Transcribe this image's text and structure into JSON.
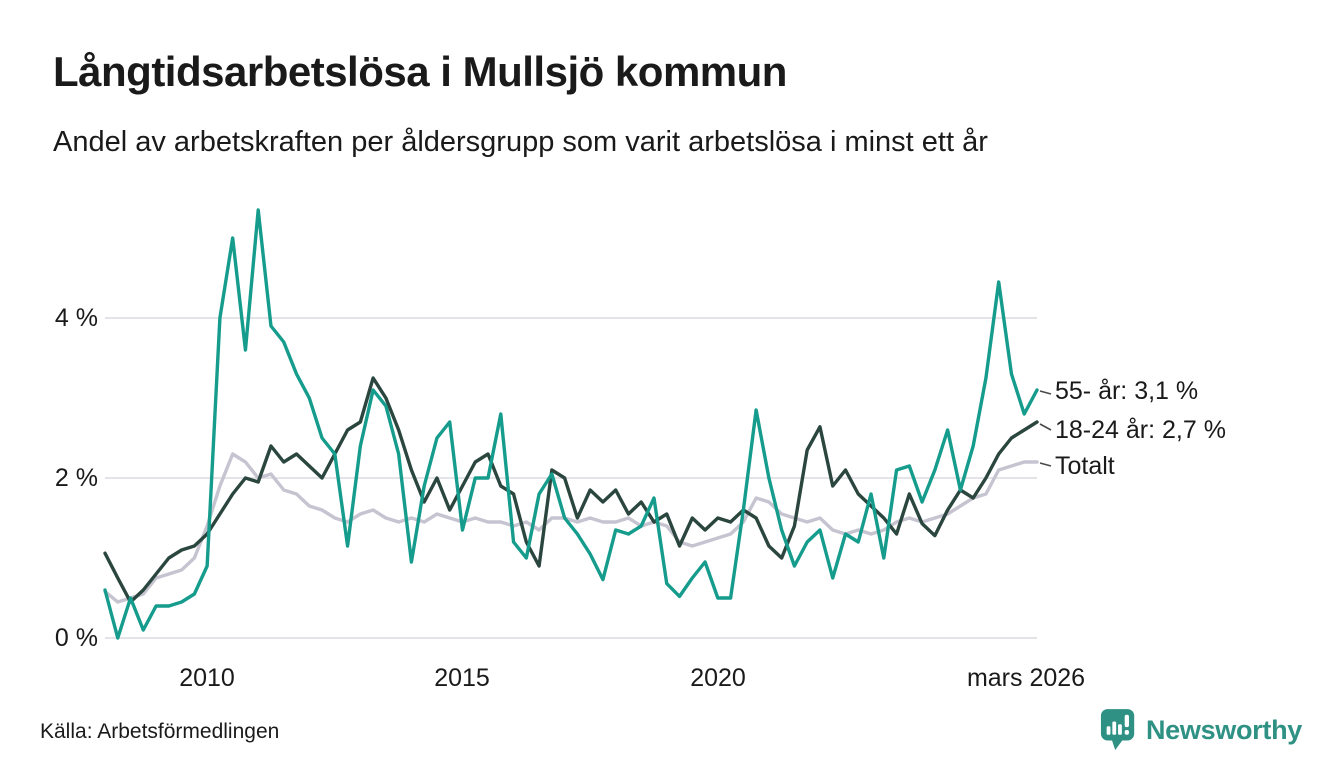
{
  "header": {
    "title": "Långtidsarbetslösa i Mullsjö kommun",
    "subtitle": "Andel av arbetskraften per åldersgrupp som varit arbetslösa i minst ett år"
  },
  "footer": {
    "source": "Källa: Arbetsförmedlingen",
    "brand": "Newsworthy"
  },
  "colors": {
    "series_55": "#159c8c",
    "series_1824": "#2a463e",
    "series_total": "#c6c4d0",
    "grid": "#e3e3e8",
    "text": "#1a1a1a",
    "brand_teal": "#2e9183"
  },
  "annotations": [
    {
      "text": "55- år: 3,1 %"
    },
    {
      "text": "18-24 år: 2,7 %"
    },
    {
      "text": "Totalt"
    }
  ],
  "chart_data": {
    "type": "line",
    "title": "Långtidsarbetslösa i Mullsjö kommun",
    "subtitle": "Andel av arbetskraften per åldersgrupp som varit arbetslösa i minst ett år",
    "unit": "% av arbetskraften",
    "xlim": [
      2008,
      2026.25
    ],
    "ylim": [
      0,
      5.5
    ],
    "grid": "horizontal-only",
    "legend": "end-of-line-labels",
    "xticks": [
      {
        "label": "2010",
        "year": 2010
      },
      {
        "label": "2015",
        "year": 2015
      },
      {
        "label": "2020",
        "year": 2020
      },
      {
        "label": "mars 2026",
        "year": 2026.2
      }
    ],
    "yticks": [
      {
        "label": "0 %",
        "value": 0
      },
      {
        "label": "2 %",
        "value": 2
      },
      {
        "label": "4 %",
        "value": 4
      }
    ],
    "x_years": [
      2008,
      2008.25,
      2008.5,
      2008.75,
      2009,
      2009.25,
      2009.5,
      2009.75,
      2010,
      2010.25,
      2010.5,
      2010.75,
      2011,
      2011.25,
      2011.5,
      2011.75,
      2012,
      2012.25,
      2012.5,
      2012.75,
      2013,
      2013.25,
      2013.5,
      2013.75,
      2014,
      2014.25,
      2014.5,
      2014.75,
      2015,
      2015.25,
      2015.5,
      2015.75,
      2016,
      2016.25,
      2016.5,
      2016.75,
      2017,
      2017.25,
      2017.5,
      2017.75,
      2018,
      2018.25,
      2018.5,
      2018.75,
      2019,
      2019.25,
      2019.5,
      2019.75,
      2020,
      2020.25,
      2020.5,
      2020.75,
      2021,
      2021.25,
      2021.5,
      2021.75,
      2022,
      2022.25,
      2022.5,
      2022.75,
      2023,
      2023.25,
      2023.5,
      2023.75,
      2024,
      2024.25,
      2024.5,
      2024.75,
      2025,
      2025.25,
      2025.5,
      2025.75,
      2026,
      2026.25
    ],
    "series": [
      {
        "name": "55- år",
        "color": "#159c8c",
        "end_label": "55- år: 3,1 %",
        "end_value": 3.1,
        "values": [
          0.6,
          0.0,
          0.5,
          0.1,
          0.4,
          0.4,
          0.45,
          0.55,
          0.9,
          4.0,
          5.0,
          3.6,
          5.35,
          3.9,
          3.7,
          3.3,
          3.0,
          2.5,
          2.3,
          1.15,
          2.4,
          3.1,
          2.9,
          2.3,
          0.95,
          1.9,
          2.5,
          2.7,
          1.35,
          2.0,
          2.0,
          2.8,
          1.2,
          1.0,
          1.8,
          2.05,
          1.5,
          1.3,
          1.05,
          0.73,
          1.35,
          1.3,
          1.4,
          1.75,
          0.68,
          0.52,
          0.75,
          0.95,
          0.5,
          0.5,
          1.6,
          2.85,
          2.0,
          1.35,
          0.9,
          1.2,
          1.35,
          0.75,
          1.3,
          1.2,
          1.8,
          1.0,
          2.1,
          2.15,
          1.7,
          2.1,
          2.6,
          1.85,
          2.4,
          3.25,
          4.45,
          3.3,
          2.8,
          3.1
        ]
      },
      {
        "name": "18-24 år",
        "color": "#2a463e",
        "end_label": "18-24 år: 2,7 %",
        "end_value": 2.7,
        "values": [
          1.06,
          0.75,
          0.45,
          0.6,
          0.8,
          1.0,
          1.1,
          1.15,
          1.3,
          1.55,
          1.8,
          2.0,
          1.95,
          2.4,
          2.2,
          2.3,
          2.15,
          2.0,
          2.3,
          2.6,
          2.7,
          3.25,
          3.0,
          2.6,
          2.1,
          1.7,
          2.0,
          1.6,
          1.9,
          2.2,
          2.3,
          1.9,
          1.8,
          1.2,
          0.9,
          2.1,
          2.0,
          1.5,
          1.85,
          1.7,
          1.85,
          1.55,
          1.7,
          1.45,
          1.55,
          1.15,
          1.5,
          1.35,
          1.5,
          1.45,
          1.6,
          1.5,
          1.15,
          1.0,
          1.4,
          2.35,
          2.64,
          1.9,
          2.1,
          1.8,
          1.65,
          1.5,
          1.3,
          1.8,
          1.43,
          1.28,
          1.6,
          1.85,
          1.75,
          2.0,
          2.3,
          2.5,
          2.6,
          2.7
        ]
      },
      {
        "name": "Totalt",
        "color": "#c6c4d0",
        "end_label": "Totalt",
        "end_value": 2.2,
        "values": [
          0.58,
          0.45,
          0.5,
          0.55,
          0.75,
          0.8,
          0.85,
          1.0,
          1.4,
          1.9,
          2.3,
          2.2,
          2.0,
          2.05,
          1.85,
          1.8,
          1.65,
          1.6,
          1.5,
          1.45,
          1.55,
          1.6,
          1.5,
          1.45,
          1.5,
          1.45,
          1.55,
          1.5,
          1.45,
          1.5,
          1.45,
          1.45,
          1.4,
          1.45,
          1.35,
          1.5,
          1.5,
          1.45,
          1.5,
          1.45,
          1.45,
          1.5,
          1.4,
          1.45,
          1.4,
          1.2,
          1.15,
          1.2,
          1.25,
          1.3,
          1.45,
          1.75,
          1.7,
          1.55,
          1.5,
          1.45,
          1.5,
          1.35,
          1.3,
          1.35,
          1.3,
          1.35,
          1.45,
          1.5,
          1.45,
          1.5,
          1.55,
          1.65,
          1.75,
          1.8,
          2.1,
          2.15,
          2.2,
          2.2
        ]
      }
    ]
  }
}
